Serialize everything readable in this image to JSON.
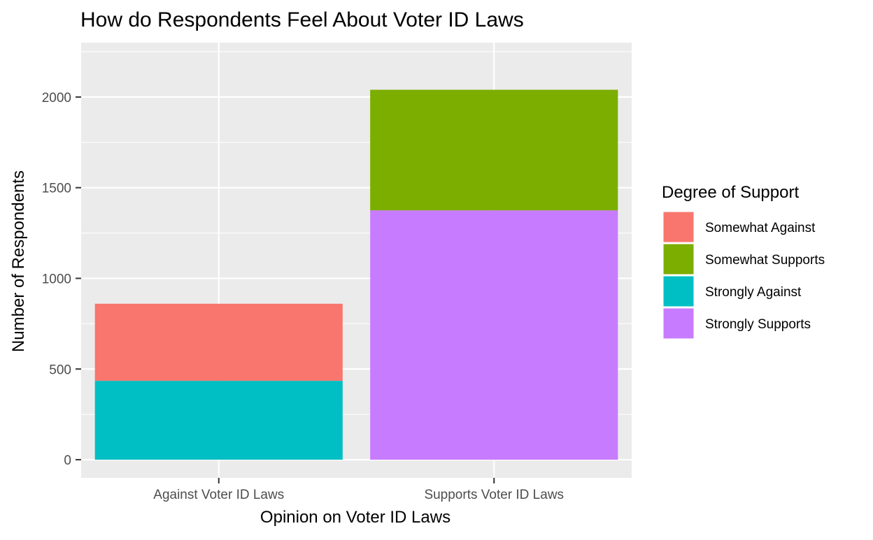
{
  "chart_data": {
    "type": "bar",
    "stacked": true,
    "title": "How do Respondents Feel About Voter ID Laws",
    "xlabel": "Opinion on Voter ID Laws",
    "ylabel": "Number of Respondents",
    "categories": [
      "Against Voter ID Laws",
      "Supports Voter ID Laws"
    ],
    "ylim": [
      -100,
      2300
    ],
    "yticks": [
      0,
      500,
      1000,
      1500,
      2000
    ],
    "grid": true,
    "legend": {
      "title": "Degree of Support",
      "placement": "right",
      "entries": [
        {
          "name": "Somewhat Against",
          "color": "#F8766D"
        },
        {
          "name": "Somewhat Supports",
          "color": "#7CAE00"
        },
        {
          "name": "Strongly Against",
          "color": "#00BFC4"
        },
        {
          "name": "Strongly Supports",
          "color": "#C77CFF"
        }
      ]
    },
    "series": [
      {
        "name": "Strongly Against",
        "color": "#00BFC4",
        "values": [
          435,
          0
        ]
      },
      {
        "name": "Somewhat Against",
        "color": "#F8766D",
        "values": [
          425,
          0
        ]
      },
      {
        "name": "Strongly Supports",
        "color": "#C77CFF",
        "values": [
          0,
          1375
        ]
      },
      {
        "name": "Somewhat Supports",
        "color": "#7CAE00",
        "values": [
          0,
          665
        ]
      }
    ],
    "panel_background": "#EBEBEB",
    "grid_color": "#FFFFFF"
  }
}
